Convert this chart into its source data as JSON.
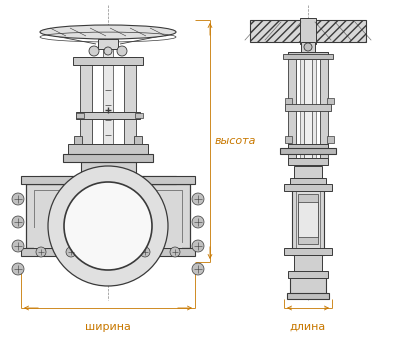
{
  "bg_color": "#ffffff",
  "line_color": "#3a3a3a",
  "dim_color": "#c87800",
  "figsize": [
    4.0,
    3.46
  ],
  "dpi": 100,
  "label_ширина": "ширина",
  "label_длина": "длина",
  "label_высота": "высота",
  "font_size_label": 8
}
